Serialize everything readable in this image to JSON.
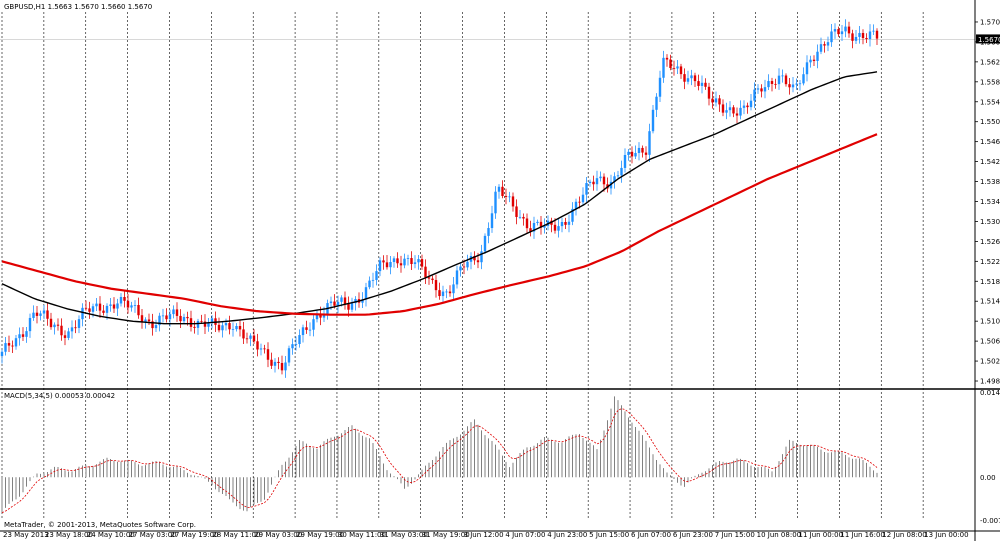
{
  "window": {
    "main_title": "GBPUSD,H1  1.5663 1.5670 1.5660 1.5670",
    "indicator_title": "MACD(5,34,5) 0.00053 0.00042",
    "copyright": "MetaTrader, © 2001-2013, MetaQuotes Software Corp."
  },
  "chart_data": [
    {
      "type": "candlestick",
      "symbol": "GBPUSD",
      "timeframe": "H1",
      "current_price": "1.5670",
      "y_ticks": [
        "1.5705",
        "1.5665",
        "1.5625",
        "1.5585",
        "1.5545",
        "1.5505",
        "1.5465",
        "1.5425",
        "1.5385",
        "1.5345",
        "1.5305",
        "1.5265",
        "1.5225",
        "1.5185",
        "1.5145",
        "1.5105",
        "1.5065",
        "1.5025",
        "1.4985"
      ],
      "ylim": [
        1.4975,
        1.5725
      ],
      "x_ticks": [
        "23 May 2013",
        "23 May 18:00",
        "24 May 10:00",
        "27 May 03:00",
        "27 May 19:00",
        "28 May 11:00",
        "29 May 03:00",
        "29 May 19:00",
        "30 May 11:00",
        "31 May 03:00",
        "31 May 19:00",
        "3 Jun 12:00",
        "4 Jun 07:00",
        "4 Jun 23:00",
        "5 Jun 15:00",
        "6 Jun 07:00",
        "6 Jun 23:00",
        "7 Jun 15:00",
        "10 Jun 08:00",
        "11 Jun 00:00",
        "11 Jun 16:00",
        "12 Jun 08:00",
        "13 Jun 00:00"
      ],
      "price_path": [
        1.5035,
        1.5075,
        1.5125,
        1.5095,
        1.5085,
        1.512,
        1.5135,
        1.5145,
        1.5125,
        1.5105,
        1.511,
        1.5115,
        1.51,
        1.509,
        1.5105,
        1.506,
        1.504,
        1.5015,
        1.507,
        1.512,
        1.5135,
        1.514,
        1.5165,
        1.5215,
        1.5235,
        1.522,
        1.5185,
        1.516,
        1.5215,
        1.5245,
        1.5365,
        1.5335,
        1.5295,
        1.529,
        1.5305,
        1.5345,
        1.5395,
        1.5385,
        1.5435,
        1.5455,
        1.562,
        1.5605,
        1.5595,
        1.554,
        1.5535,
        1.5525,
        1.5575,
        1.56,
        1.556,
        1.564,
        1.5665,
        1.569,
        1.568,
        1.567
      ],
      "series": [
        {
          "name": "",
          "color": "#000000",
          "values": [
            1.518,
            1.515,
            1.513,
            1.5115,
            1.5105,
            1.51,
            1.51,
            1.5105,
            1.5112,
            1.512,
            1.513,
            1.5145,
            1.5165,
            1.519,
            1.5218,
            1.5245,
            1.5275,
            1.5305,
            1.534,
            1.539,
            1.543,
            1.5455,
            1.548,
            1.551,
            1.554,
            1.557,
            1.5595,
            1.5605
          ]
        },
        {
          "name": "",
          "color": "#e00000",
          "values": [
            1.5225,
            1.5205,
            1.5185,
            1.517,
            1.516,
            1.515,
            1.5135,
            1.5125,
            1.512,
            1.5118,
            1.5118,
            1.5125,
            1.514,
            1.516,
            1.5178,
            1.5195,
            1.5215,
            1.5245,
            1.5285,
            1.532,
            1.5355,
            1.539,
            1.542,
            1.545,
            1.548
          ]
        }
      ],
      "colors": {
        "bull": "#1e90ff",
        "bear": "#e00000",
        "grid": "#000000",
        "price_line": "#c0c0c0"
      }
    },
    {
      "type": "bar",
      "name": "MACD",
      "params": "5,34,5",
      "y_ticks": [
        "0.01437",
        "0.00",
        "-0.00722"
      ],
      "ylim": [
        -0.00722,
        0.01437
      ],
      "histogram_path": [
        -0.006,
        -0.003,
        0.0005,
        0.0015,
        0.0012,
        0.002,
        0.003,
        0.0028,
        0.0022,
        0.0025,
        0.0015,
        0.0005,
        -0.0012,
        -0.004,
        -0.0058,
        -0.0035,
        0.002,
        0.006,
        0.005,
        0.007,
        0.0085,
        0.0065,
        0.0015,
        -0.002,
        0.001,
        0.0045,
        0.007,
        0.0095,
        0.006,
        0.002,
        0.005,
        0.0065,
        0.006,
        0.0075,
        0.0045,
        0.0135,
        0.0095,
        0.005,
        0.0005,
        -0.0015,
        0.001,
        0.0025,
        0.003,
        0.002,
        0.001,
        0.006,
        0.0055,
        0.0045,
        0.004,
        0.003,
        0.001
      ],
      "colors": {
        "histogram": "#808080",
        "signal": "#e00000"
      }
    }
  ]
}
